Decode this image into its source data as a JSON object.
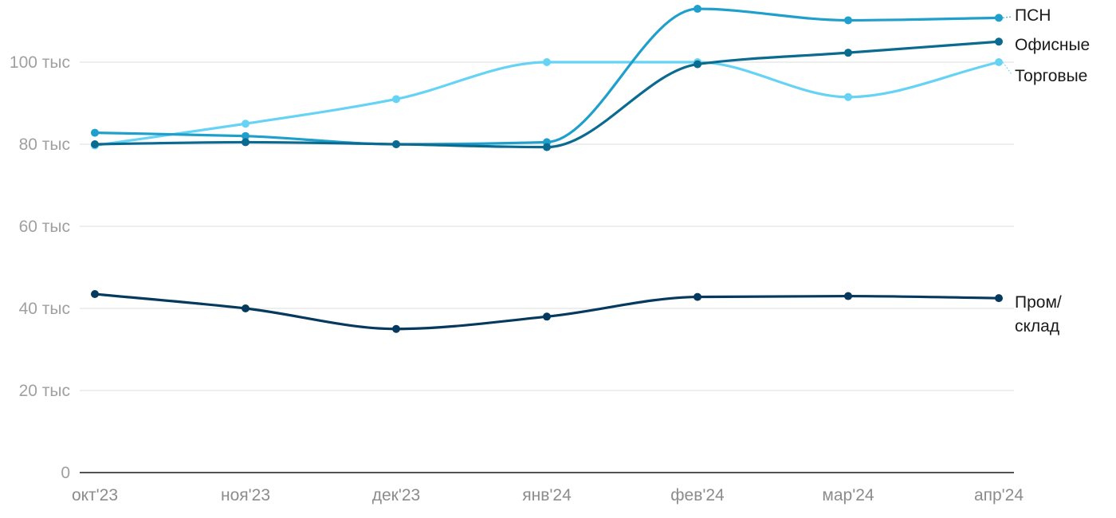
{
  "chart_data": {
    "type": "line",
    "categories": [
      "окт'23",
      "ноя'23",
      "дек'23",
      "янв'24",
      "фев'24",
      "мар'24",
      "апр'24"
    ],
    "ylim": [
      0,
      115000
    ],
    "yticks": [
      {
        "value": 0,
        "label": "0"
      },
      {
        "value": 20000,
        "label": "20 тыс"
      },
      {
        "value": 40000,
        "label": "40 тыс"
      },
      {
        "value": 60000,
        "label": "60 тыс"
      },
      {
        "value": 80000,
        "label": "80 тыс"
      },
      {
        "value": 100000,
        "label": "100 тыс"
      }
    ],
    "grid": true,
    "legend": "end-of-line labels",
    "series": [
      {
        "name": "Торговые",
        "color": "#66d3f5",
        "values": [
          79700,
          85000,
          91000,
          100000,
          100000,
          91500,
          100000
        ]
      },
      {
        "name": "ПСН",
        "color": "#1f9fcc",
        "values": [
          82800,
          82000,
          80000,
          80500,
          113000,
          110200,
          110800
        ]
      },
      {
        "name": "Офисные",
        "color": "#0b6a8f",
        "values": [
          80000,
          80500,
          80000,
          79300,
          99500,
          102300,
          105000
        ]
      },
      {
        "name": "Пром/\nсклад",
        "color": "#053a5e",
        "values": [
          43500,
          40000,
          35000,
          38000,
          42800,
          43000,
          42500
        ]
      }
    ]
  }
}
